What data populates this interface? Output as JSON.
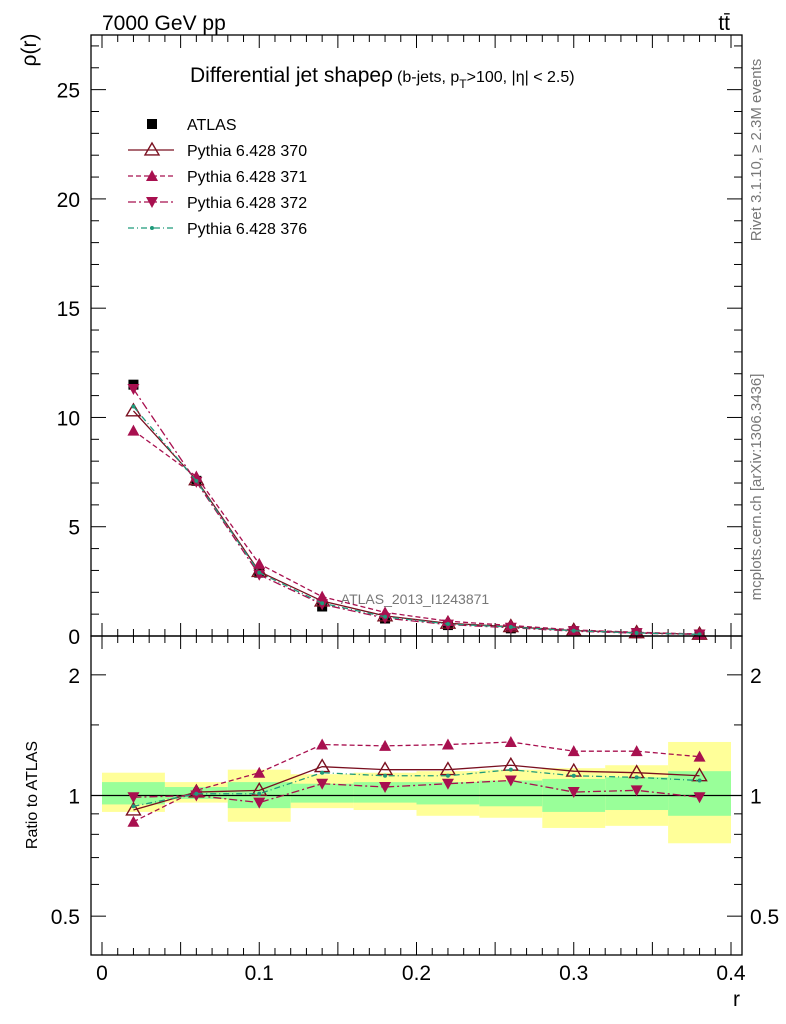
{
  "header": {
    "left": "7000 GeV pp",
    "right": "tt̄"
  },
  "side": {
    "rivet": "Rivet 3.1.10, ≥ 2.3M events",
    "mcplots": "mcplots.cern.ch [arXiv:1306.3436]"
  },
  "chart_data": [
    {
      "type": "line",
      "title": "Differential jet shapeρ",
      "title_suffix": "(b-jets, p",
      "title_sub": "T",
      "title_tail": ">100, |η| < 2.5)",
      "ylabel": "ρ(r)",
      "xlabel": "",
      "watermark": "ATLAS_2013_I1243871",
      "xlim": [
        -0.0,
        0.4
      ],
      "ylim": [
        0,
        27.5
      ],
      "yticks": [
        0,
        5,
        10,
        15,
        20,
        25
      ],
      "x": [
        0.02,
        0.06,
        0.1,
        0.14,
        0.18,
        0.22,
        0.26,
        0.3,
        0.34,
        0.38
      ],
      "series": [
        {
          "name": "ATLAS",
          "style": "data",
          "color": "#000000",
          "values": [
            11.5,
            7.1,
            2.9,
            1.35,
            0.8,
            0.5,
            0.35,
            0.22,
            0.13,
            0.07
          ]
        },
        {
          "name": "Pythia 6.428 370",
          "style": "p370",
          "color": "#7a1020",
          "values": [
            10.3,
            7.15,
            2.95,
            1.6,
            0.92,
            0.58,
            0.43,
            0.25,
            0.15,
            0.08
          ]
        },
        {
          "name": "Pythia 6.428 371",
          "style": "p371",
          "color": "#a8104f",
          "values": [
            9.4,
            7.3,
            3.3,
            1.8,
            1.08,
            0.68,
            0.48,
            0.28,
            0.17,
            0.09
          ]
        },
        {
          "name": "Pythia 6.428 372",
          "style": "p372",
          "color": "#a8104f",
          "values": [
            11.3,
            7.05,
            2.8,
            1.45,
            0.82,
            0.52,
            0.38,
            0.22,
            0.13,
            0.07
          ]
        },
        {
          "name": "Pythia 6.428 376",
          "style": "p376",
          "color": "#1f9a7a",
          "values": [
            10.5,
            7.1,
            2.9,
            1.5,
            0.88,
            0.55,
            0.41,
            0.24,
            0.14,
            0.075
          ]
        }
      ]
    },
    {
      "type": "line",
      "title": "",
      "ylabel": "Ratio to ATLAS",
      "xlabel": "r",
      "scale": "log",
      "xlim": [
        0,
        0.4
      ],
      "ylim": [
        0.4,
        2.5
      ],
      "yticks": [
        0.5,
        1,
        2
      ],
      "xticks": [
        0,
        0.1,
        0.2,
        0.3,
        0.4
      ],
      "bands": {
        "yellow": [
          [
            0.91,
            1.14
          ],
          [
            0.96,
            1.08
          ],
          [
            0.86,
            1.16
          ],
          [
            0.93,
            1.13
          ],
          [
            0.92,
            1.14
          ],
          [
            0.89,
            1.15
          ],
          [
            0.88,
            1.16
          ],
          [
            0.83,
            1.17
          ],
          [
            0.84,
            1.19
          ],
          [
            0.76,
            1.36
          ]
        ],
        "green": [
          [
            0.95,
            1.08
          ],
          [
            0.98,
            1.05
          ],
          [
            0.93,
            1.08
          ],
          [
            0.96,
            1.07
          ],
          [
            0.96,
            1.08
          ],
          [
            0.95,
            1.08
          ],
          [
            0.94,
            1.09
          ],
          [
            0.91,
            1.1
          ],
          [
            0.92,
            1.11
          ],
          [
            0.89,
            1.15
          ]
        ]
      },
      "x": [
        0.02,
        0.06,
        0.1,
        0.14,
        0.18,
        0.22,
        0.26,
        0.3,
        0.34,
        0.38
      ],
      "series": [
        {
          "name": "Pythia 6.428 370",
          "style": "p370",
          "color": "#7a1020",
          "values": [
            0.92,
            1.02,
            1.03,
            1.18,
            1.16,
            1.16,
            1.19,
            1.15,
            1.14,
            1.12
          ]
        },
        {
          "name": "Pythia 6.428 371",
          "style": "p371",
          "color": "#a8104f",
          "values": [
            0.86,
            1.03,
            1.14,
            1.34,
            1.33,
            1.34,
            1.36,
            1.29,
            1.29,
            1.25
          ]
        },
        {
          "name": "Pythia 6.428 372",
          "style": "p372",
          "color": "#a8104f",
          "values": [
            0.99,
            1.0,
            0.96,
            1.07,
            1.05,
            1.07,
            1.09,
            1.02,
            1.03,
            0.99
          ]
        },
        {
          "name": "Pythia 6.428 376",
          "style": "p376",
          "color": "#1f9a7a",
          "values": [
            0.94,
            1.01,
            1.01,
            1.14,
            1.12,
            1.12,
            1.16,
            1.12,
            1.11,
            1.09
          ]
        }
      ]
    }
  ]
}
